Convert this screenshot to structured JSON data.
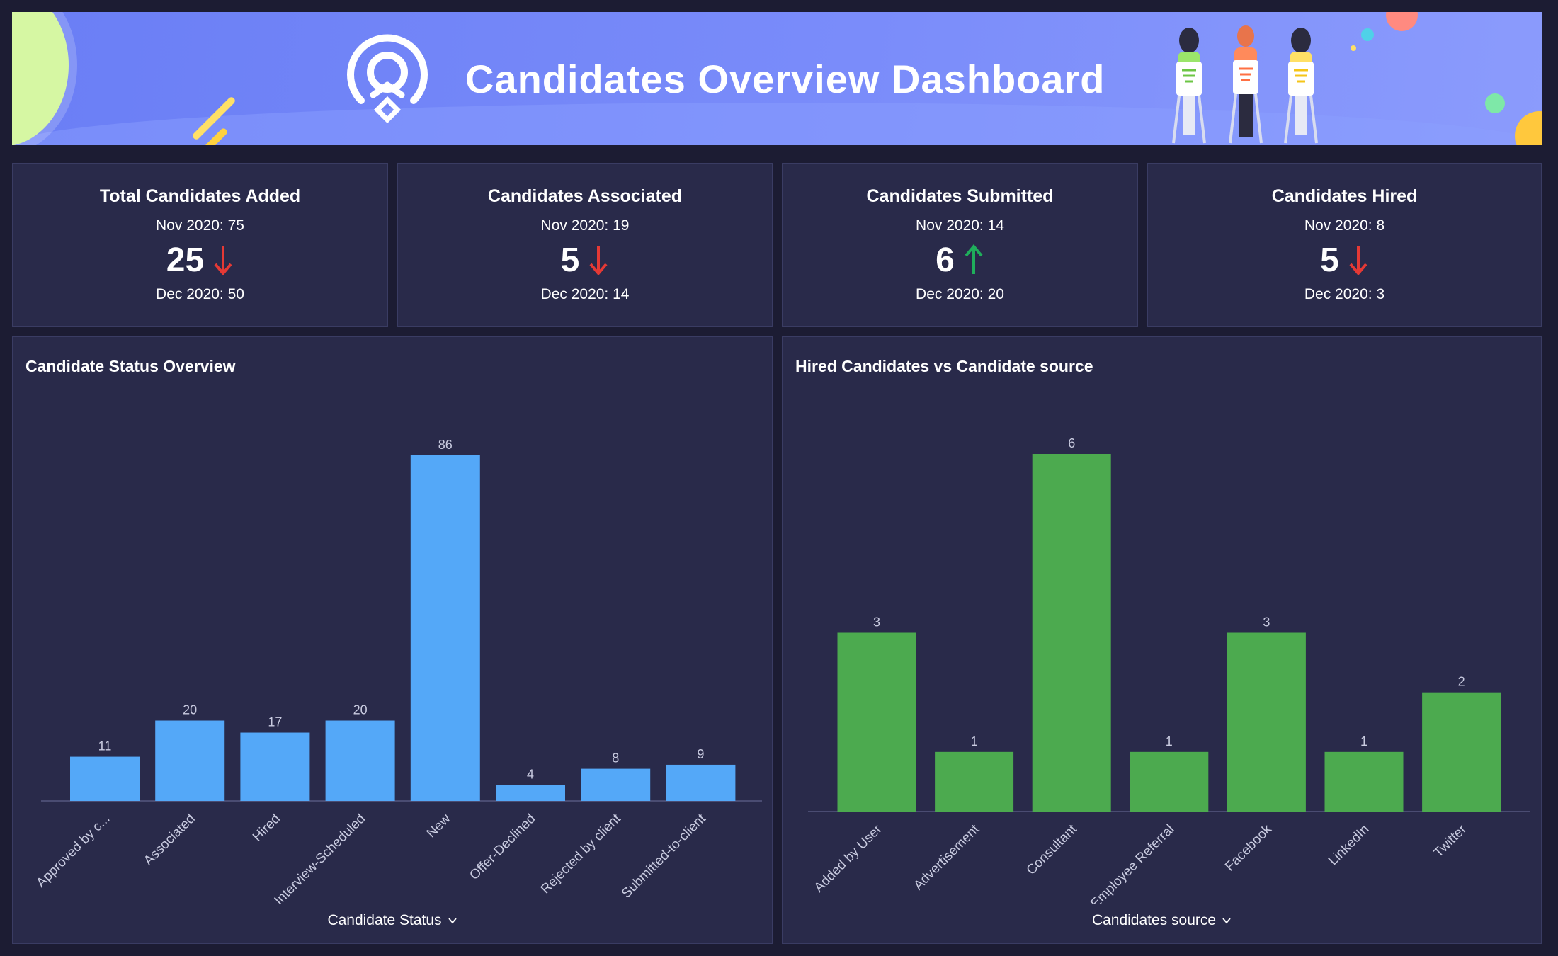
{
  "header": {
    "title": "Candidates Overview Dashboard"
  },
  "kpis": [
    {
      "title": "Total Candidates Added",
      "previous": "Nov 2020: 75",
      "value": "25",
      "trend": "down",
      "current": "Dec 2020: 50"
    },
    {
      "title": "Candidates Associated",
      "previous": "Nov 2020: 19",
      "value": "5",
      "trend": "down",
      "current": "Dec 2020: 14"
    },
    {
      "title": "Candidates Submitted",
      "previous": "Nov 2020: 14",
      "value": "6",
      "trend": "up",
      "current": "Dec 2020: 20"
    },
    {
      "title": "Candidates Hired",
      "previous": "Nov 2020: 8",
      "value": "5",
      "trend": "down",
      "current": "Dec 2020: 3"
    }
  ],
  "colors": {
    "down": "#e53935",
    "up": "#1fae5b",
    "status_bar": "#54a8f8",
    "source_bar": "#4caa4f",
    "axis": "#55577f",
    "label": "#c9cbe0"
  },
  "chart_data": [
    {
      "type": "bar",
      "title": "Candidate Status Overview",
      "xlabel": "Candidate Status",
      "ylabel": "",
      "categories": [
        "Approved by c...",
        "Associated",
        "Hired",
        "Interview-Scheduled",
        "New",
        "Offer-Declined",
        "Rejected by client",
        "Submitted-to-client"
      ],
      "values": [
        11,
        20,
        17,
        20,
        86,
        4,
        8,
        9
      ],
      "ylim": [
        0,
        86
      ],
      "grid": false,
      "legend": "none"
    },
    {
      "type": "bar",
      "title": "Hired Candidates vs Candidate source",
      "xlabel": "Candidates source",
      "ylabel": "",
      "categories": [
        "Added by User",
        "Advertisement",
        "Consultant",
        "Employee Referral",
        "Facebook",
        "LinkedIn",
        "Twitter"
      ],
      "values": [
        3,
        1,
        6,
        1,
        3,
        1,
        2
      ],
      "ylim": [
        0,
        6
      ],
      "grid": false,
      "legend": "none"
    }
  ]
}
